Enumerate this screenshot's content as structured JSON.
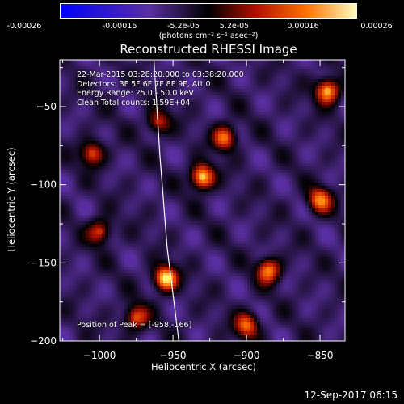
{
  "colorbar": {
    "ticks": [
      "-0.00026",
      "-0.00016",
      "-5.2e-05",
      "5.2e-05",
      "0.00016",
      "0.00026"
    ],
    "units": "(photons cm⁻² s⁻¹ asec⁻²)"
  },
  "chart_data": {
    "type": "heatmap",
    "title": "Reconstructed RHESSI Image",
    "xlabel": "Heliocentric X (arcsec)",
    "ylabel": "Heliocentric Y (arcsec)",
    "xlim": [
      -1027,
      -833
    ],
    "ylim": [
      -200,
      -20
    ],
    "x_ticks": [
      -1000,
      -950,
      -900,
      -850
    ],
    "x_tick_labels": [
      "−1000",
      "−950",
      "−900",
      "−850"
    ],
    "y_ticks": [
      -50,
      -100,
      -150,
      -200
    ],
    "y_tick_labels": [
      "−50",
      "−100",
      "−150",
      "−200"
    ],
    "colorbar_range": [
      -0.00026,
      0.00026
    ],
    "colormap": [
      "#0000ff",
      "#5a2fa0",
      "#000000",
      "#b01000",
      "#ff7000",
      "#ffff80"
    ],
    "annotations": [
      "22-Mar-2015 03:28:20.000 to 03:38:20.000",
      "Detectors: 3F 5F 6F 7F 8F 9F, Att 0",
      "Energy Range: 25.0 - 50.0 keV",
      "Clean      Total counts: 1.59E+04"
    ],
    "peak_label": "Position of Peak = [-958,-166]",
    "limb_curve": [
      [
        -963,
        -20
      ],
      [
        -959,
        -80
      ],
      [
        -954,
        -140
      ],
      [
        -946,
        -200
      ]
    ],
    "sources": [
      {
        "x": -955,
        "y": -160,
        "value": 0.00026
      },
      {
        "x": -930,
        "y": -95,
        "value": 0.00024
      },
      {
        "x": -915,
        "y": -70,
        "value": 0.00017
      },
      {
        "x": -1005,
        "y": -80,
        "value": 0.00013
      },
      {
        "x": -1000,
        "y": -130,
        "value": 0.00012
      },
      {
        "x": -975,
        "y": -185,
        "value": 0.00014
      },
      {
        "x": -885,
        "y": -155,
        "value": 0.00018
      },
      {
        "x": -845,
        "y": -40,
        "value": 0.00022
      },
      {
        "x": -850,
        "y": -110,
        "value": 0.00018
      },
      {
        "x": -900,
        "y": -190,
        "value": 0.00016
      },
      {
        "x": -960,
        "y": -60,
        "value": 0.0001
      }
    ]
  },
  "timestamp": "12-Sep-2017 06:15"
}
